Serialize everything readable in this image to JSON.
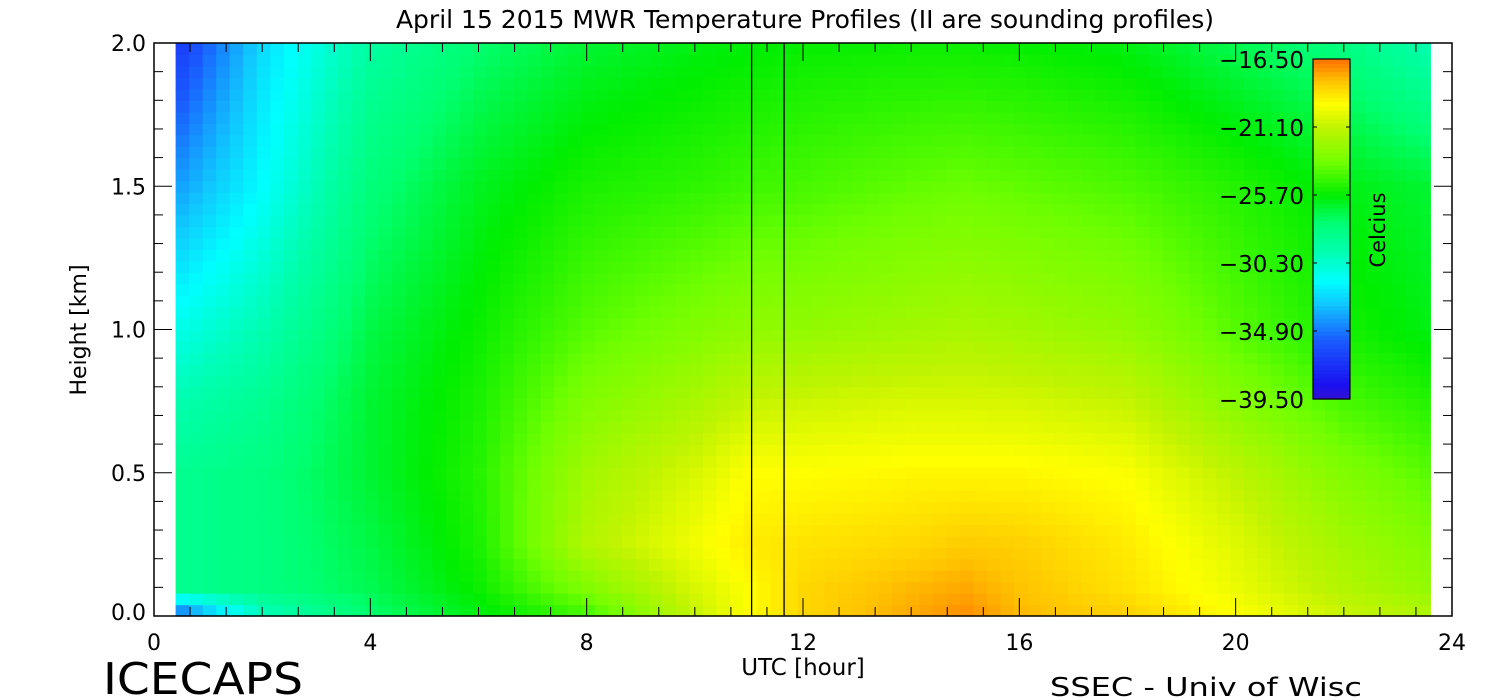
{
  "chart_data": {
    "type": "heatmap",
    "title": "April 15 2015 MWR Temperature Profiles (II are sounding profiles)",
    "xlabel": "UTC [hour]",
    "ylabel": "Height [km]",
    "xlim": [
      0,
      24
    ],
    "ylim": [
      0,
      2.0
    ],
    "xticks": [
      "0",
      "4",
      "8",
      "12",
      "16",
      "20",
      "24"
    ],
    "yticks": [
      "0.0",
      "0.5",
      "1.0",
      "1.5",
      "2.0"
    ],
    "colorbar": {
      "label": "Celcius",
      "range": [
        -39.5,
        -16.5
      ],
      "ticks": [
        "-16.50",
        "-21.10",
        "-25.70",
        "-30.30",
        "-34.90",
        "-39.50"
      ],
      "colormap": [
        [
          -40.5,
          "#4a10b0"
        ],
        [
          -38.5,
          "#1a10f0"
        ],
        [
          -35.5,
          "#1a5cff"
        ],
        [
          -33.0,
          "#10c8ff"
        ],
        [
          -31.5,
          "#00ffff"
        ],
        [
          -29.5,
          "#00ffb0"
        ],
        [
          -27.5,
          "#00ff70"
        ],
        [
          -25.7,
          "#00ee00"
        ],
        [
          -23.5,
          "#70ff00"
        ],
        [
          -21.1,
          "#c0f400"
        ],
        [
          -19.5,
          "#ffff00"
        ],
        [
          -18.0,
          "#ffc400"
        ],
        [
          -16.5,
          "#ff7000"
        ]
      ]
    },
    "x_hours": [
      0.4,
      2,
      4,
      6,
      8,
      10,
      11,
      12,
      14,
      15,
      16,
      18,
      20,
      22,
      23.6
    ],
    "y_km": [
      0,
      0.1,
      0.25,
      0.5,
      0.75,
      1.0,
      1.5,
      2.0
    ],
    "temperature_celsius": [
      [
        -36,
        -28.5,
        -28.5,
        -28.5,
        -29.5,
        -31,
        -34,
        -37
      ],
      [
        -30,
        -28,
        -28,
        -28,
        -28.5,
        -29.5,
        -31.5,
        -32.5
      ],
      [
        -27.5,
        -27,
        -26.8,
        -26.5,
        -26.5,
        -26.8,
        -27.8,
        -29
      ],
      [
        -26,
        -25.5,
        -25.2,
        -25,
        -25.2,
        -25.5,
        -26.2,
        -27.5
      ],
      [
        -24.5,
        -23,
        -21.5,
        -22,
        -23,
        -24,
        -25.2,
        -26.5
      ],
      [
        -21,
        -20.5,
        -19.8,
        -20.5,
        -21.8,
        -23,
        -24.8,
        -26
      ],
      [
        -19.5,
        -19.5,
        -19,
        -19.5,
        -21,
        -22.5,
        -24.5,
        -25.8
      ],
      [
        -18.5,
        -18.5,
        -18.8,
        -19.5,
        -20.8,
        -22.5,
        -24.3,
        -25.6
      ],
      [
        -17.5,
        -17.8,
        -18.5,
        -19.3,
        -20.5,
        -22,
        -23.8,
        -25.5
      ],
      [
        -17,
        -17.5,
        -18.2,
        -19.3,
        -20.5,
        -21.8,
        -23.6,
        -25.5
      ],
      [
        -17.8,
        -18,
        -18.3,
        -19.3,
        -20.6,
        -22,
        -23.8,
        -25.6
      ],
      [
        -18.3,
        -18.8,
        -19,
        -19.6,
        -21,
        -22.5,
        -24.2,
        -26
      ],
      [
        -19.5,
        -20,
        -20.3,
        -21.2,
        -22.8,
        -24,
        -25,
        -27
      ],
      [
        -20.8,
        -21.5,
        -22,
        -23,
        -24.3,
        -25.3,
        -26,
        -28
      ],
      [
        -21.5,
        -22.5,
        -23,
        -24,
        -25,
        -26,
        -26.5,
        -29.5
      ]
    ],
    "sounding_times_hours": [
      11.05,
      11.65
    ]
  },
  "footer": {
    "left": "ICECAPS",
    "right": "SSEC - Univ of Wisc"
  }
}
